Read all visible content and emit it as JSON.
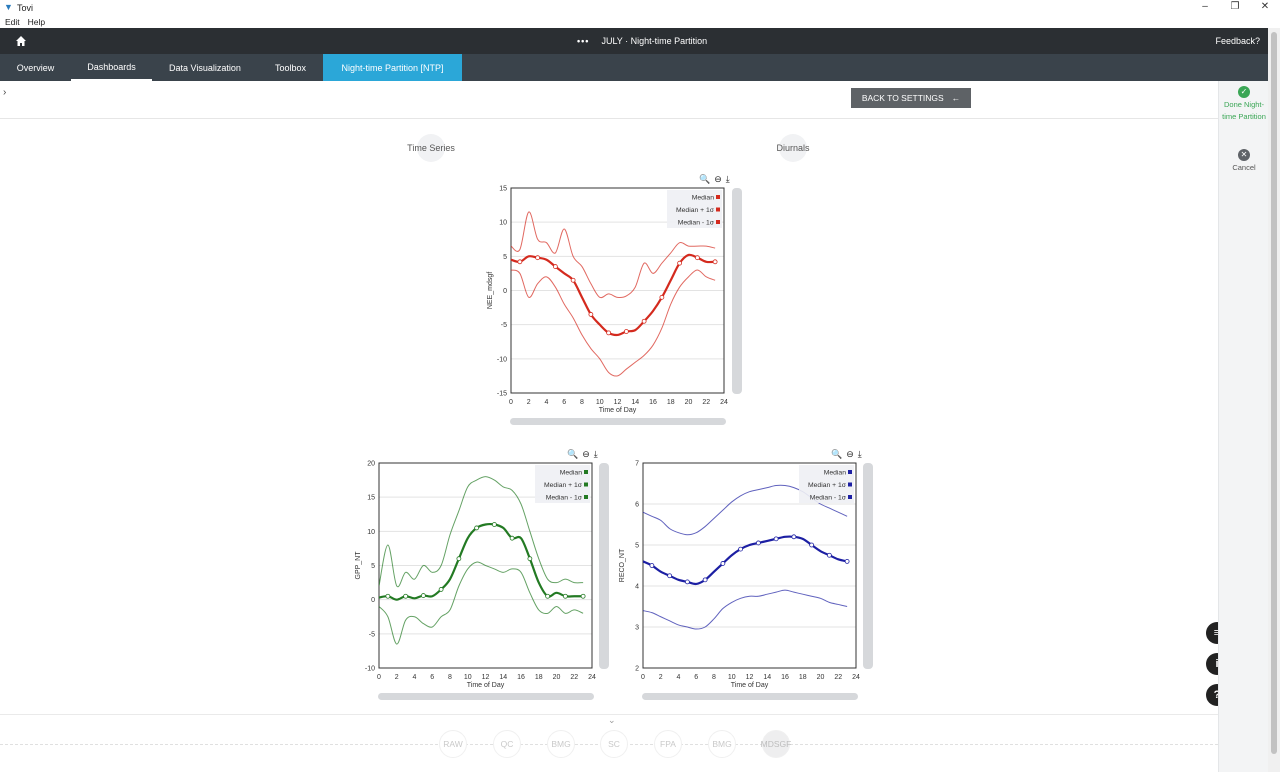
{
  "window": {
    "title": "Tovi",
    "controls": [
      "–",
      "❐",
      "✕"
    ]
  },
  "menu": [
    "Edit",
    "Help"
  ],
  "appbar": {
    "dots": "•••",
    "title": "JULY · Night-time Partition",
    "feedback": "Feedback?"
  },
  "tabs": [
    "Overview",
    "Dashboards",
    "Data Visualization",
    "Toolbox",
    "Night-time Partition [NTP]"
  ],
  "active_tab_index": 4,
  "back_button": "BACK TO SETTINGS",
  "subtabs": [
    "Time Series",
    "Diurnals"
  ],
  "side_actions": [
    {
      "label": "Done Night-time Partition",
      "icon": "check-circle-icon",
      "color": "#3aa655"
    },
    {
      "label": "Cancel",
      "icon": "close-circle-icon",
      "color": "#5f6368"
    }
  ],
  "floating_buttons": [
    {
      "icon": "chat-icon",
      "glyph": "≡"
    },
    {
      "icon": "info-icon",
      "glyph": "i"
    },
    {
      "icon": "help-icon",
      "glyph": "?"
    }
  ],
  "steps": [
    "RAW",
    "QC",
    "BMG",
    "SC",
    "FPA",
    "BMG",
    "MDSGF"
  ],
  "current_step_index": 6,
  "legend_labels": [
    "Median",
    "Median + 1σ",
    "Median - 1σ"
  ],
  "chart_data": [
    {
      "type": "line",
      "id": "nee",
      "xlabel": "Time of Day",
      "ylabel": "NEE_mdsgf",
      "xlim": [
        0,
        24
      ],
      "ylim": [
        -15,
        15
      ],
      "xticks": [
        0,
        2,
        4,
        6,
        8,
        10,
        12,
        14,
        16,
        18,
        20,
        22,
        24
      ],
      "yticks": [
        15,
        10,
        5,
        0,
        -5,
        -10,
        -15
      ],
      "color": "#d42a1e",
      "x": [
        0,
        1,
        2,
        3,
        4,
        5,
        6,
        7,
        8,
        9,
        10,
        11,
        12,
        13,
        14,
        15,
        16,
        17,
        18,
        19,
        20,
        21,
        22,
        23
      ],
      "series": [
        {
          "name": "Median",
          "values": [
            4.5,
            4.2,
            5.0,
            4.8,
            4.5,
            3.5,
            2.5,
            1.5,
            -1.0,
            -3.5,
            -5.0,
            -6.2,
            -6.5,
            -6.0,
            -5.8,
            -4.5,
            -3.0,
            -1.0,
            1.5,
            4.0,
            5.2,
            4.8,
            4.2,
            4.2
          ]
        },
        {
          "name": "Median + 1σ",
          "values": [
            6.5,
            6.0,
            11.5,
            7.5,
            7.0,
            5.5,
            9.0,
            5.0,
            3.5,
            1.0,
            -1.0,
            -0.5,
            -1.0,
            -0.8,
            0.5,
            4.0,
            2.5,
            4.0,
            5.5,
            7.0,
            6.5,
            6.5,
            6.5,
            6.2
          ]
        },
        {
          "name": "Median - 1σ",
          "values": [
            3.0,
            2.5,
            -1.0,
            1.0,
            2.0,
            0.5,
            -2.0,
            -4.0,
            -6.5,
            -8.5,
            -10.0,
            -12.0,
            -12.5,
            -11.5,
            -10.5,
            -9.5,
            -8.0,
            -5.5,
            -2.0,
            0.5,
            2.0,
            3.0,
            2.0,
            1.5
          ]
        }
      ]
    },
    {
      "type": "line",
      "id": "gpp",
      "xlabel": "Time of Day",
      "ylabel": "GPP_NT",
      "xlim": [
        0,
        24
      ],
      "ylim": [
        -10,
        20
      ],
      "xticks": [
        0,
        2,
        4,
        6,
        8,
        10,
        12,
        14,
        16,
        18,
        20,
        22,
        24
      ],
      "yticks": [
        20,
        15,
        10,
        5,
        0,
        -5,
        -10
      ],
      "color": "#237a23",
      "x": [
        0,
        1,
        2,
        3,
        4,
        5,
        6,
        7,
        8,
        9,
        10,
        11,
        12,
        13,
        14,
        15,
        16,
        17,
        18,
        19,
        20,
        21,
        22,
        23
      ],
      "series": [
        {
          "name": "Median",
          "values": [
            0.3,
            0.5,
            0.0,
            0.5,
            0.2,
            0.6,
            0.5,
            1.5,
            3.0,
            6.0,
            9.0,
            10.5,
            11.0,
            11.0,
            10.5,
            9.0,
            9.0,
            6.0,
            2.5,
            0.5,
            1.0,
            0.5,
            0.5,
            0.5
          ]
        },
        {
          "name": "Median + 1σ",
          "values": [
            2.0,
            8.0,
            2.0,
            4.0,
            3.0,
            5.0,
            4.0,
            5.0,
            9.5,
            13.0,
            16.5,
            17.5,
            18.0,
            17.5,
            16.5,
            16.0,
            14.0,
            10.0,
            6.0,
            3.0,
            2.5,
            3.0,
            2.5,
            2.5
          ]
        },
        {
          "name": "Median - 1σ",
          "values": [
            -1.0,
            -2.5,
            -6.5,
            -3.0,
            -2.5,
            -3.5,
            -4.0,
            -2.5,
            -1.5,
            2.0,
            4.5,
            5.5,
            5.0,
            4.5,
            4.0,
            4.5,
            4.0,
            1.0,
            -1.5,
            -2.0,
            -1.0,
            -2.0,
            -1.5,
            -2.0
          ]
        }
      ]
    },
    {
      "type": "line",
      "id": "reco",
      "xlabel": "Time of Day",
      "ylabel": "RECO_NT",
      "xlim": [
        0,
        24
      ],
      "ylim": [
        2,
        7
      ],
      "xticks": [
        0,
        2,
        4,
        6,
        8,
        10,
        12,
        14,
        16,
        18,
        20,
        22,
        24
      ],
      "yticks": [
        7,
        6,
        5,
        4,
        3,
        2
      ],
      "color": "#1c1fa3",
      "x": [
        0,
        1,
        2,
        3,
        4,
        5,
        6,
        7,
        8,
        9,
        10,
        11,
        12,
        13,
        14,
        15,
        16,
        17,
        18,
        19,
        20,
        21,
        22,
        23
      ],
      "series": [
        {
          "name": "Median",
          "values": [
            4.6,
            4.5,
            4.35,
            4.25,
            4.15,
            4.1,
            4.05,
            4.15,
            4.35,
            4.55,
            4.75,
            4.9,
            5.0,
            5.05,
            5.1,
            5.15,
            5.2,
            5.2,
            5.15,
            5.0,
            4.85,
            4.75,
            4.65,
            4.6
          ]
        },
        {
          "name": "Median + 1σ",
          "values": [
            5.8,
            5.7,
            5.6,
            5.4,
            5.3,
            5.25,
            5.3,
            5.45,
            5.65,
            5.85,
            6.05,
            6.2,
            6.3,
            6.35,
            6.4,
            6.45,
            6.45,
            6.4,
            6.3,
            6.15,
            6.0,
            5.9,
            5.8,
            5.7
          ]
        },
        {
          "name": "Median - 1σ",
          "values": [
            3.4,
            3.35,
            3.25,
            3.15,
            3.05,
            3.0,
            2.95,
            3.0,
            3.2,
            3.45,
            3.6,
            3.7,
            3.75,
            3.75,
            3.8,
            3.85,
            3.9,
            3.85,
            3.8,
            3.75,
            3.7,
            3.6,
            3.55,
            3.5
          ]
        }
      ]
    }
  ]
}
